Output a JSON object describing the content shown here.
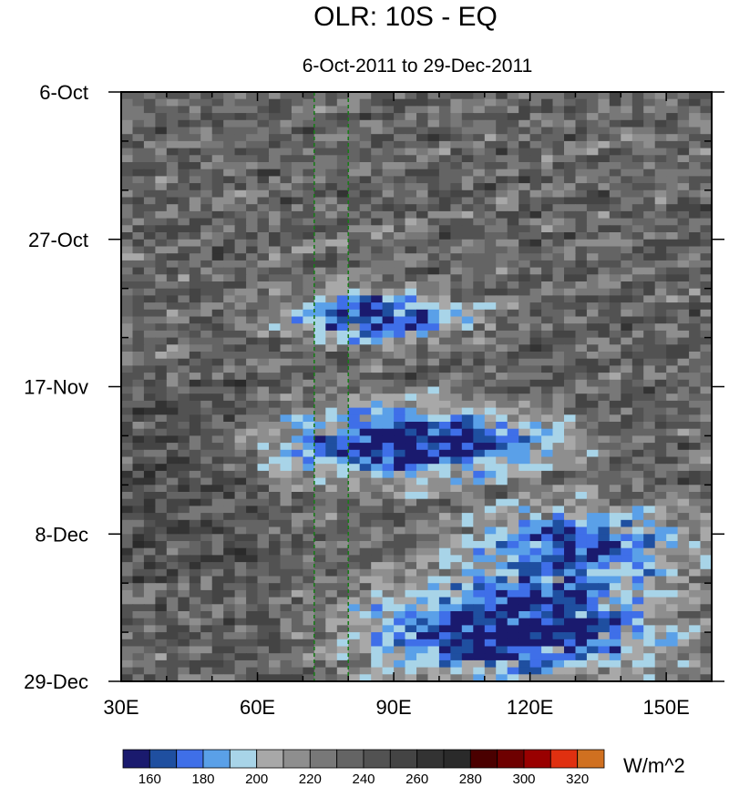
{
  "chart_data": {
    "type": "heatmap",
    "title": "OLR: 10S - EQ",
    "subtitle": "6-Oct-2011 to 29-Dec-2011",
    "xlabel": "",
    "ylabel": "",
    "x_range": [
      30,
      160
    ],
    "x_ticks": [
      30,
      60,
      90,
      120,
      150
    ],
    "x_tick_labels": [
      "30E",
      "60E",
      "90E",
      "120E",
      "150E"
    ],
    "y_range_days": [
      0,
      84
    ],
    "y_ticks": [
      0,
      21,
      42,
      63,
      84
    ],
    "y_tick_labels": [
      "6-Oct",
      "27-Oct",
      "17-Nov",
      "8-Dec",
      "29-Dec"
    ],
    "reference_lines_lon": [
      72.5,
      80
    ],
    "colorbar": {
      "units": "W/m^2",
      "levels": [
        160,
        170,
        180,
        190,
        200,
        210,
        220,
        230,
        240,
        250,
        260,
        270,
        280,
        290,
        300,
        310,
        320,
        330
      ],
      "labels": [
        160,
        180,
        200,
        220,
        240,
        260,
        280,
        300,
        320
      ],
      "colors": [
        "#1a1a6e",
        "#1f4fa0",
        "#3f6fe8",
        "#5aa0e8",
        "#a8d4e8",
        "#a8a8a8",
        "#8e8e8e",
        "#787878",
        "#646464",
        "#525252",
        "#444444",
        "#333333",
        "#2a2a2a",
        "#4a0000",
        "#6e0000",
        "#990000",
        "#e03010",
        "#d07020"
      ]
    },
    "convection_events": [
      {
        "lon_start": 60,
        "lon_end": 110,
        "day_start": 28,
        "day_end": 35,
        "min_olr": 170
      },
      {
        "lon_start": 55,
        "lon_end": 130,
        "day_start": 44,
        "day_end": 55,
        "min_olr": 160
      },
      {
        "lon_start": 100,
        "lon_end": 160,
        "day_start": 58,
        "day_end": 70,
        "min_olr": 180
      },
      {
        "lon_start": 75,
        "lon_end": 155,
        "day_start": 68,
        "day_end": 84,
        "min_olr": 160
      }
    ]
  }
}
